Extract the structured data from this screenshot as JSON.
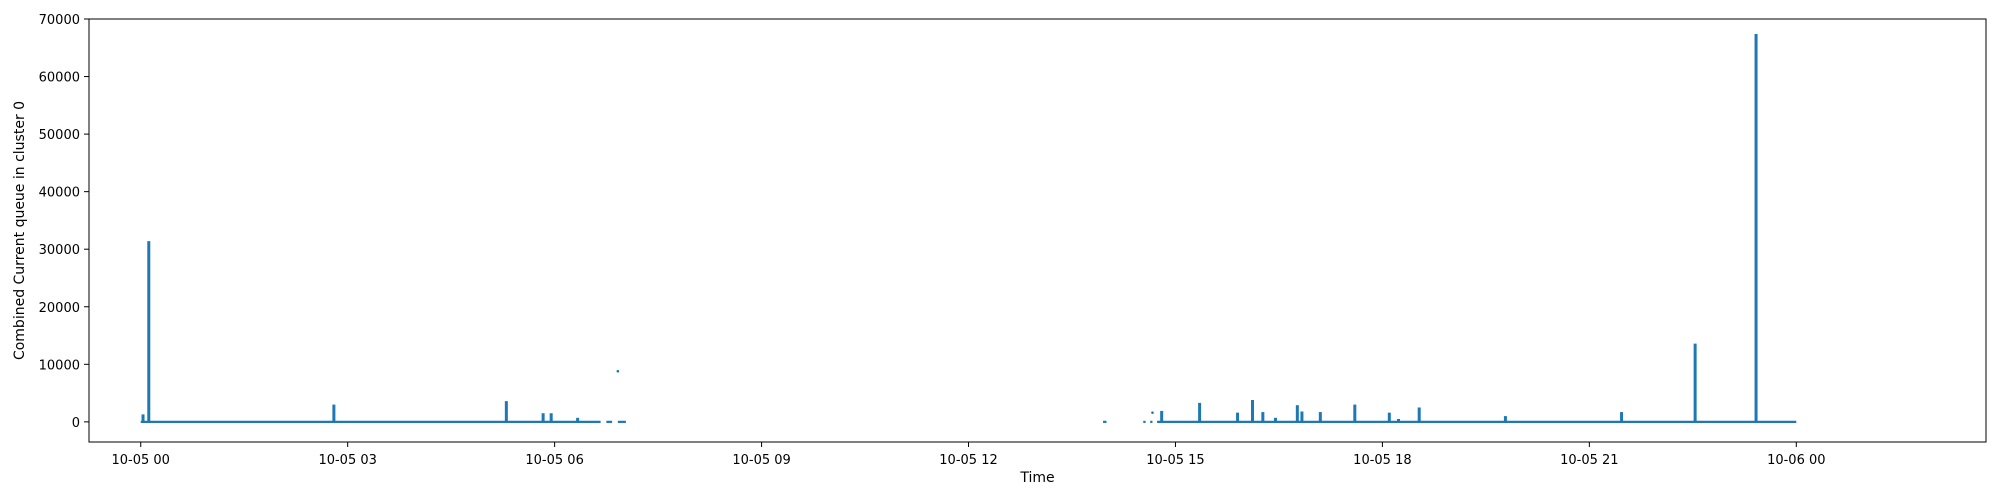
{
  "chart_data": {
    "type": "line",
    "title": "",
    "xlabel": "Time",
    "ylabel": "Combined Current queue in cluster 0",
    "x_unit": "datetime",
    "xlim": [
      "2024-10-04 23:15",
      "2024-10-06 02:45"
    ],
    "ylim": [
      -3500,
      70000
    ],
    "grid": false,
    "legend": "none",
    "color": "#1f77b4",
    "x_ticks": [
      {
        "value": "2024-10-05 00:00",
        "label": "10-05 00"
      },
      {
        "value": "2024-10-05 03:00",
        "label": "10-05 03"
      },
      {
        "value": "2024-10-05 06:00",
        "label": "10-05 06"
      },
      {
        "value": "2024-10-05 09:00",
        "label": "10-05 09"
      },
      {
        "value": "2024-10-05 12:00",
        "label": "10-05 12"
      },
      {
        "value": "2024-10-05 15:00",
        "label": "10-05 15"
      },
      {
        "value": "2024-10-05 18:00",
        "label": "10-05 18"
      },
      {
        "value": "2024-10-05 21:00",
        "label": "10-05 21"
      },
      {
        "value": "2024-10-06 00:00",
        "label": "10-06 00"
      }
    ],
    "y_ticks": [
      {
        "value": 0,
        "label": "0"
      },
      {
        "value": 10000,
        "label": "10000"
      },
      {
        "value": 20000,
        "label": "20000"
      },
      {
        "value": 30000,
        "label": "30000"
      },
      {
        "value": 40000,
        "label": "40000"
      },
      {
        "value": 50000,
        "label": "50000"
      },
      {
        "value": 60000,
        "label": "60000"
      },
      {
        "value": 70000,
        "label": "70000"
      }
    ],
    "segments": [
      {
        "start": "2024-10-05 00:00",
        "end": "2024-10-05 06:40"
      },
      {
        "start": "2024-10-05 06:45",
        "end": "2024-10-05 06:50"
      },
      {
        "start": "2024-10-05 06:55",
        "end": "2024-10-05 07:02"
      },
      {
        "start": "2024-10-05 13:57",
        "end": "2024-10-05 14:00"
      },
      {
        "start": "2024-10-05 14:32",
        "end": "2024-10-05 14:34"
      },
      {
        "start": "2024-10-05 14:38",
        "end": "2024-10-05 14:40"
      },
      {
        "start": "2024-10-05 14:44",
        "end": "2024-10-06 00:00"
      }
    ],
    "spikes": [
      {
        "x": "2024-10-05 00:02",
        "y": 1300
      },
      {
        "x": "2024-10-05 00:07",
        "y": 31400
      },
      {
        "x": "2024-10-05 02:48",
        "y": 3000
      },
      {
        "x": "2024-10-05 05:18",
        "y": 3600
      },
      {
        "x": "2024-10-05 05:50",
        "y": 1500
      },
      {
        "x": "2024-10-05 05:57",
        "y": 1500
      },
      {
        "x": "2024-10-05 06:20",
        "y": 700
      },
      {
        "x": "2024-10-05 14:48",
        "y": 1900
      },
      {
        "x": "2024-10-05 15:21",
        "y": 3300
      },
      {
        "x": "2024-10-05 15:54",
        "y": 1600
      },
      {
        "x": "2024-10-05 16:07",
        "y": 3800
      },
      {
        "x": "2024-10-05 16:16",
        "y": 1700
      },
      {
        "x": "2024-10-05 16:27",
        "y": 700
      },
      {
        "x": "2024-10-05 16:46",
        "y": 2900
      },
      {
        "x": "2024-10-05 16:50",
        "y": 1800
      },
      {
        "x": "2024-10-05 17:06",
        "y": 1700
      },
      {
        "x": "2024-10-05 17:36",
        "y": 3000
      },
      {
        "x": "2024-10-05 18:06",
        "y": 1600
      },
      {
        "x": "2024-10-05 18:14",
        "y": 500
      },
      {
        "x": "2024-10-05 18:32",
        "y": 2500
      },
      {
        "x": "2024-10-05 19:47",
        "y": 1000
      },
      {
        "x": "2024-10-05 21:28",
        "y": 1700
      },
      {
        "x": "2024-10-05 22:32",
        "y": 13600
      },
      {
        "x": "2024-10-05 23:25",
        "y": 67400
      }
    ],
    "isolated_points": [
      {
        "x": "2024-10-05 06:55",
        "y": 8800
      },
      {
        "x": "2024-10-05 14:40",
        "y": 1600
      }
    ]
  }
}
